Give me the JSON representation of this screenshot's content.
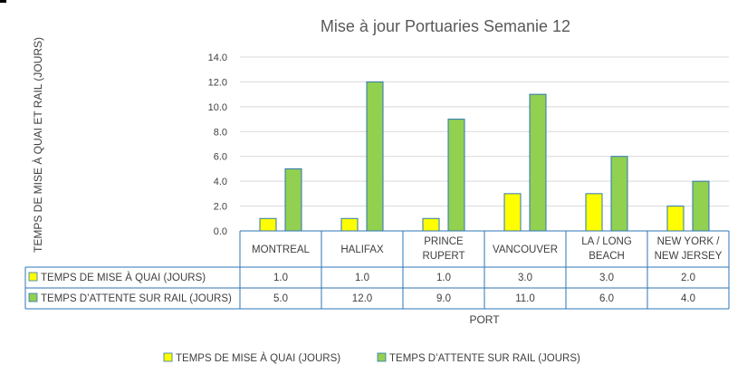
{
  "chart_data": {
    "type": "bar",
    "title": "Mise à jour Portuaries Semanie 12",
    "ylabel": "TEMPS DE MISE À QUAI ET RAIL (JOURS)",
    "xlabel": "PORT",
    "ylim": [
      0,
      14
    ],
    "y_ticks": [
      "0.0",
      "2.0",
      "4.0",
      "6.0",
      "8.0",
      "10.0",
      "12.0",
      "14.0"
    ],
    "grid": true,
    "legend_position": "bottom",
    "categories": [
      [
        "MONTREAL"
      ],
      [
        "HALIFAX"
      ],
      [
        "PRINCE",
        "RUPERT"
      ],
      [
        "VANCOUVER"
      ],
      [
        "LA / LONG",
        "BEACH"
      ],
      [
        "NEW YORK /",
        "NEW JERSEY"
      ]
    ],
    "series": [
      {
        "name": "TEMPS DE MISE À QUAI (JOURS)",
        "color": "#ffff00",
        "values": [
          1,
          1,
          1,
          3,
          3,
          2
        ],
        "labels": [
          "1.0",
          "1.0",
          "1.0",
          "3.0",
          "3.0",
          "2.0"
        ]
      },
      {
        "name": "TEMPS  D’ATTENTE SUR RAIL (JOURS)",
        "color": "#92d050",
        "values": [
          5,
          12,
          9,
          11,
          6,
          4
        ],
        "labels": [
          "5.0",
          "12.0",
          "9.0",
          "11.0",
          "6.0",
          "4.0"
        ]
      }
    ],
    "data_table": true,
    "colors": {
      "bar_stroke": "#2e75b6",
      "table_border": "#2e75b6",
      "grid": "#d9d9d9",
      "text": "#404040"
    }
  }
}
